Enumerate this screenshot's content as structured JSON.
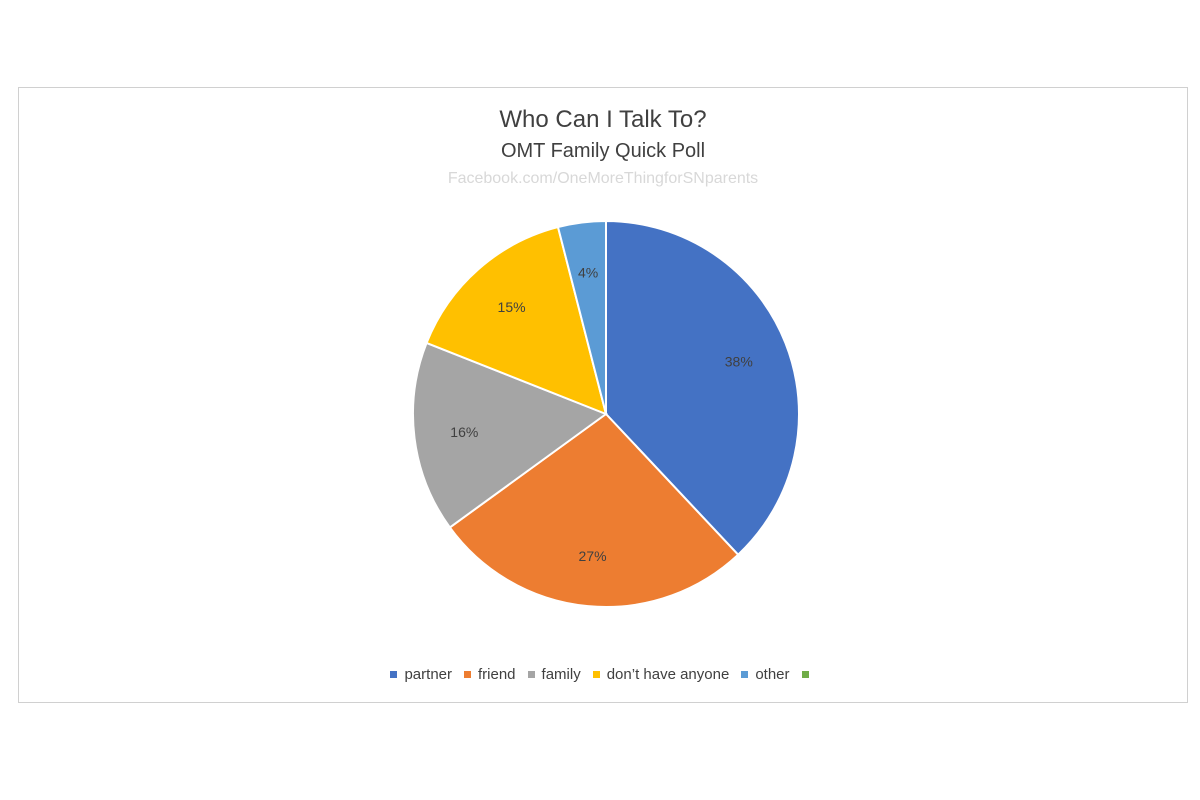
{
  "chart_data": {
    "type": "pie",
    "title": "Who Can I Talk To?",
    "subtitle": "OMT Family Quick Poll",
    "watermark": "Facebook.com/OneMoreThingforSNparents",
    "categories": [
      "partner",
      "friend",
      "family",
      "don’t have anyone",
      "other",
      ""
    ],
    "values": [
      38,
      27,
      16,
      15,
      4,
      0
    ],
    "labels": [
      "38%",
      "27%",
      "16%",
      "15%",
      "4%",
      ""
    ],
    "colors": [
      "#4472C4",
      "#ED7D31",
      "#A5A5A5",
      "#FFC000",
      "#5B9BD5",
      "#70AD47"
    ],
    "legend_position": "bottom"
  }
}
